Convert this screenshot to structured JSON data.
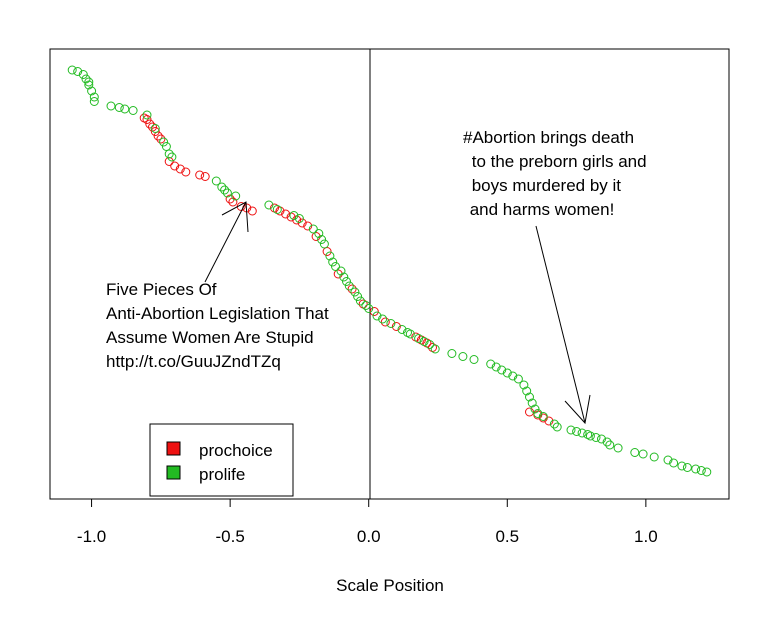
{
  "chart_data": {
    "type": "scatter",
    "title": "",
    "xlabel": "Scale Position",
    "ylabel": "",
    "xlim": [
      -1.15,
      1.3
    ],
    "ylim": [
      0,
      300
    ],
    "x_ticks": [
      -1.0,
      -0.5,
      0.0,
      0.5,
      1.0
    ],
    "x_tick_labels": [
      "-1.0",
      "-0.5",
      "0.0",
      "0.5",
      "1.0"
    ],
    "y_axis_shown": false,
    "vertical_line_at": 0.0,
    "colors": {
      "prochoice": "#ee1111",
      "prolife": "#22bb22"
    },
    "legend": {
      "position": "bottom-left",
      "entries": [
        {
          "label": "prochoice",
          "color": "#ee1111"
        },
        {
          "label": "prolife",
          "color": "#22bb22"
        }
      ]
    },
    "series": [
      {
        "name": "prochoice",
        "color": "#ee1111",
        "points": [
          [
            -0.81,
            254
          ],
          [
            -0.8,
            253
          ],
          [
            -0.79,
            250
          ],
          [
            -0.78,
            248
          ],
          [
            -0.77,
            245
          ],
          [
            -0.76,
            242
          ],
          [
            -0.75,
            240
          ],
          [
            -0.72,
            225
          ],
          [
            -0.7,
            222
          ],
          [
            -0.68,
            220
          ],
          [
            -0.66,
            218
          ],
          [
            -0.61,
            216
          ],
          [
            -0.59,
            215
          ],
          [
            -0.5,
            200
          ],
          [
            -0.49,
            198
          ],
          [
            -0.46,
            195
          ],
          [
            -0.44,
            194
          ],
          [
            -0.42,
            192
          ],
          [
            -0.34,
            194
          ],
          [
            -0.32,
            192
          ],
          [
            -0.3,
            190
          ],
          [
            -0.28,
            188
          ],
          [
            -0.26,
            186
          ],
          [
            -0.24,
            184
          ],
          [
            -0.22,
            182
          ],
          [
            -0.19,
            175
          ],
          [
            -0.15,
            165
          ],
          [
            -0.11,
            150
          ],
          [
            -0.06,
            140
          ],
          [
            -0.02,
            130
          ],
          [
            0.02,
            125
          ],
          [
            0.06,
            118
          ],
          [
            0.1,
            115
          ],
          [
            0.17,
            108
          ],
          [
            0.19,
            106
          ],
          [
            0.21,
            104
          ],
          [
            0.23,
            101
          ],
          [
            0.58,
            58
          ],
          [
            0.61,
            56
          ],
          [
            0.63,
            54
          ],
          [
            0.65,
            52
          ]
        ]
      },
      {
        "name": "prolife",
        "color": "#22bb22",
        "points": [
          [
            -1.07,
            286
          ],
          [
            -1.05,
            285
          ],
          [
            -1.03,
            283
          ],
          [
            -1.02,
            280
          ],
          [
            -1.01,
            278
          ],
          [
            -1.01,
            276
          ],
          [
            -1.0,
            272
          ],
          [
            -0.99,
            268
          ],
          [
            -0.99,
            265
          ],
          [
            -0.93,
            262
          ],
          [
            -0.9,
            261
          ],
          [
            -0.88,
            260
          ],
          [
            -0.85,
            259
          ],
          [
            -0.8,
            256
          ],
          [
            -0.77,
            247
          ],
          [
            -0.74,
            238
          ],
          [
            -0.73,
            235
          ],
          [
            -0.72,
            230
          ],
          [
            -0.71,
            228
          ],
          [
            -0.55,
            212
          ],
          [
            -0.53,
            208
          ],
          [
            -0.52,
            206
          ],
          [
            -0.51,
            204
          ],
          [
            -0.48,
            202
          ],
          [
            -0.36,
            196
          ],
          [
            -0.33,
            193
          ],
          [
            -0.27,
            189
          ],
          [
            -0.25,
            187
          ],
          [
            -0.2,
            180
          ],
          [
            -0.18,
            177
          ],
          [
            -0.17,
            173
          ],
          [
            -0.16,
            170
          ],
          [
            -0.14,
            162
          ],
          [
            -0.13,
            158
          ],
          [
            -0.12,
            155
          ],
          [
            -0.1,
            152
          ],
          [
            -0.09,
            148
          ],
          [
            -0.08,
            145
          ],
          [
            -0.07,
            142
          ],
          [
            -0.05,
            138
          ],
          [
            -0.04,
            135
          ],
          [
            -0.03,
            132
          ],
          [
            -0.01,
            129
          ],
          [
            0.0,
            127
          ],
          [
            0.03,
            122
          ],
          [
            0.05,
            120
          ],
          [
            0.08,
            117
          ],
          [
            0.12,
            113
          ],
          [
            0.14,
            111
          ],
          [
            0.15,
            110
          ],
          [
            0.18,
            107
          ],
          [
            0.2,
            105
          ],
          [
            0.22,
            103
          ],
          [
            0.24,
            100
          ],
          [
            0.3,
            97
          ],
          [
            0.34,
            95
          ],
          [
            0.38,
            93
          ],
          [
            0.44,
            90
          ],
          [
            0.46,
            88
          ],
          [
            0.48,
            86
          ],
          [
            0.5,
            84
          ],
          [
            0.52,
            82
          ],
          [
            0.54,
            80
          ],
          [
            0.56,
            76
          ],
          [
            0.57,
            72
          ],
          [
            0.58,
            68
          ],
          [
            0.59,
            64
          ],
          [
            0.6,
            60
          ],
          [
            0.61,
            57
          ],
          [
            0.63,
            55
          ],
          [
            0.67,
            50
          ],
          [
            0.68,
            48
          ],
          [
            0.73,
            46
          ],
          [
            0.75,
            45
          ],
          [
            0.77,
            44
          ],
          [
            0.79,
            43
          ],
          [
            0.8,
            42
          ],
          [
            0.82,
            41
          ],
          [
            0.84,
            40
          ],
          [
            0.86,
            38
          ],
          [
            0.87,
            36
          ],
          [
            0.9,
            34
          ],
          [
            0.96,
            31
          ],
          [
            0.99,
            30
          ],
          [
            1.03,
            28
          ],
          [
            1.08,
            26
          ],
          [
            1.1,
            24
          ],
          [
            1.13,
            22
          ],
          [
            1.15,
            21
          ],
          [
            1.18,
            20
          ],
          [
            1.2,
            19
          ],
          [
            1.22,
            18
          ]
        ]
      }
    ],
    "annotations": [
      {
        "lines": [
          "#Abortion brings death",
          " to the preborn girls and",
          " boys murdered by it",
          " and harms women!"
        ],
        "arrow_to": [
          0.78,
          45
        ]
      },
      {
        "lines": [
          "Five Pieces Of",
          "Anti-Abortion Legislation That",
          "Assume Women Are Stupid",
          "http://t.co/GuuJZndTZq"
        ],
        "arrow_to": [
          -0.44,
          192
        ]
      }
    ]
  }
}
